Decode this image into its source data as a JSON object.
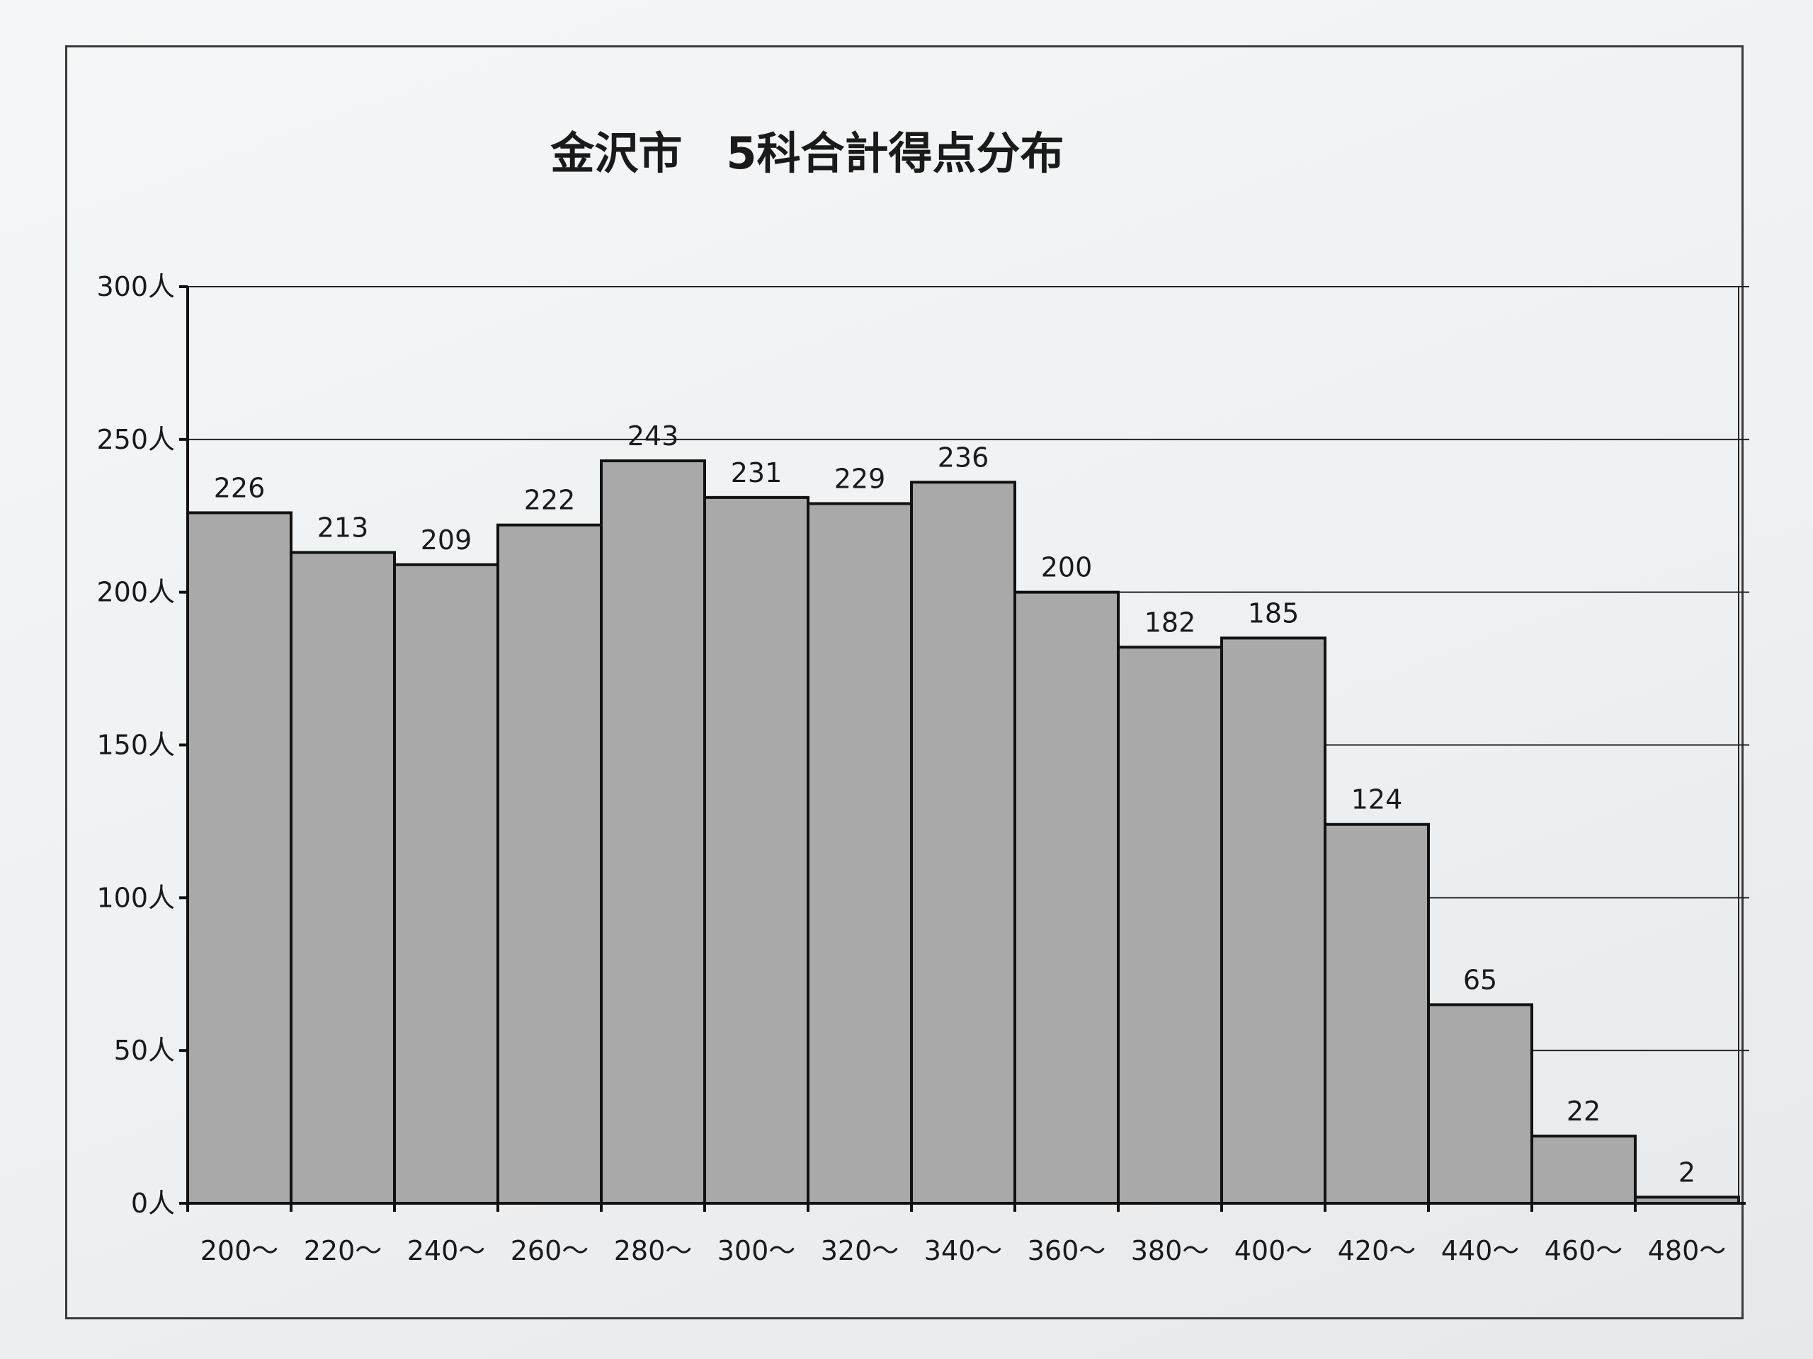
{
  "chart_data": {
    "type": "bar",
    "title": "金沢市　5科合計得点分布",
    "xlabel": "",
    "ylabel": "",
    "categories": [
      "200～",
      "220～",
      "240～",
      "260～",
      "280～",
      "300～",
      "320～",
      "340～",
      "360～",
      "380～",
      "400～",
      "420～",
      "440～",
      "460～",
      "480～"
    ],
    "values": [
      226,
      213,
      209,
      222,
      243,
      231,
      229,
      236,
      200,
      182,
      185,
      124,
      65,
      22,
      2
    ],
    "yticks": [
      "0人",
      "50人",
      "100人",
      "150人",
      "200人",
      "250人",
      "300人"
    ],
    "ylim": [
      0,
      300
    ],
    "grid": true,
    "legend": "none",
    "bar_color": "#a9a9a9"
  }
}
